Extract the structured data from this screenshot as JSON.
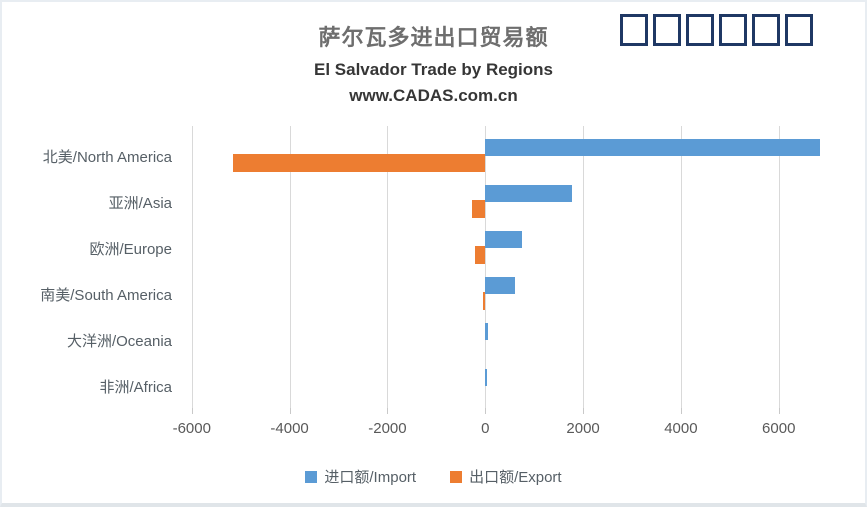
{
  "header": {
    "title": "萨尔瓦多进出口贸易额",
    "subtitle": "El Salvador Trade by Regions",
    "website": "www.CADAS.com.cn",
    "logo_placeholder": "□□□□□□",
    "logo_color": "#1f3864"
  },
  "chart_data": {
    "type": "bar",
    "orientation": "horizontal",
    "title": "萨尔瓦多进出口贸易额",
    "subtitle": "El Salvador Trade by Regions",
    "categories": [
      "北美/North America",
      "亚洲/Asia",
      "欧洲/Europe",
      "南美/South America",
      "大洋洲/Oceania",
      "非洲/Africa"
    ],
    "series": [
      {
        "name": "进口额/Import",
        "color": "#5B9BD5",
        "values": [
          6850,
          1770,
          750,
          610,
          60,
          45
        ]
      },
      {
        "name": "出口额/Export",
        "color": "#ED7D31",
        "values": [
          -5150,
          -280,
          -210,
          -40,
          0,
          0
        ]
      }
    ],
    "xlim": [
      -6200,
      7600
    ],
    "x_ticks": [
      -6000,
      -4000,
      -2000,
      0,
      2000,
      4000,
      6000
    ],
    "grid": true,
    "gridline_color": "#d9d9d9",
    "legend_position": "bottom"
  },
  "colors": {
    "import_blue": "#5B9BD5",
    "export_orange": "#ED7D31",
    "text_gray": "#595959",
    "title_gray": "#6e6e6e",
    "subtitle_dark": "#363636",
    "logo_navy": "#1f3864"
  }
}
